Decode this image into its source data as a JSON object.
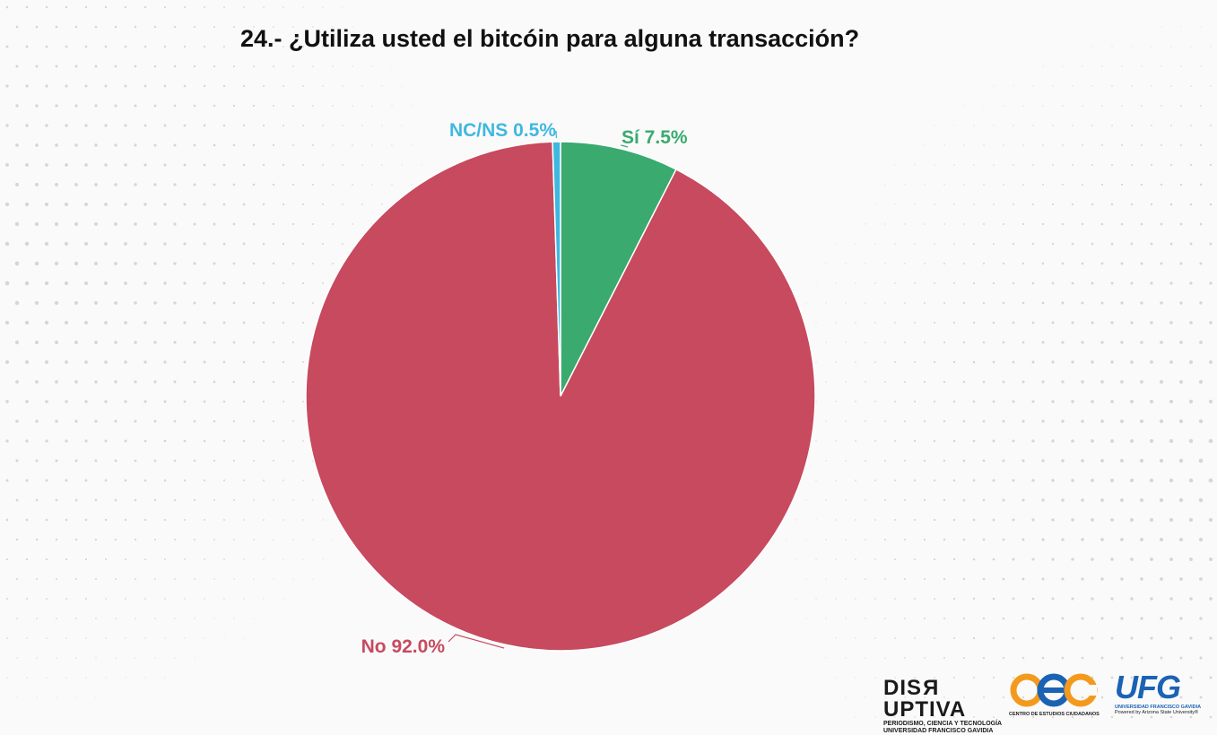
{
  "title": "24.- ¿Utiliza usted el bitcóin para alguna transacción?",
  "chart_data": {
    "type": "pie",
    "title": "24.- ¿Utiliza usted el bitcóin para alguna transacción?",
    "slices": [
      {
        "label": "Sí",
        "value": 7.5,
        "text": "Sí 7.5%",
        "color": "#3aaa6f"
      },
      {
        "label": "No",
        "value": 92.0,
        "text": "No 92.0%",
        "color": "#c74a5f"
      },
      {
        "label": "NC/NS",
        "value": 0.5,
        "text": "NC/NS 0.5%",
        "color": "#3fb8e0"
      }
    ],
    "start": "12 o'clock, clockwise",
    "legend": "none"
  },
  "logos": {
    "disruptiva": {
      "name_a": "DIS",
      "name_r": "R",
      "name_b": "UPTIVA",
      "line1": "PERIODISMO, CIENCIA Y TECNOLOGÍA",
      "line2": "UNIVERSIDAD FRANCISCO GAVIDIA"
    },
    "cec": {
      "name": "CEC",
      "subtitle": "CENTRO DE ESTUDIOS CIUDADANOS",
      "colors": [
        "#f39a1e",
        "#1a63b4"
      ]
    },
    "ufg": {
      "name": "UFG",
      "line1": "UNIVERSIDAD FRANCISCO GAVIDIA",
      "line2": "Powered by Arizona State University®"
    }
  }
}
